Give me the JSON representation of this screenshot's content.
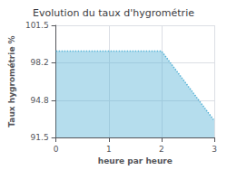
{
  "chart_data": {
    "type": "area",
    "title": "Evolution du taux d'hygrométrie",
    "xlabel": "heure par heure",
    "ylabel": "Taux hygrométrie %",
    "x": [
      0,
      1,
      2,
      3
    ],
    "values": [
      99.2,
      99.2,
      99.2,
      93.0
    ],
    "color": "#5ab4d6",
    "line_style": "dotted",
    "xlim": [
      0,
      3
    ],
    "xticks": [
      0,
      1,
      2,
      3
    ],
    "ylim": [
      91.5,
      101.5
    ],
    "yticks": [
      91.5,
      94.8,
      98.2,
      101.5
    ],
    "grid": true
  }
}
